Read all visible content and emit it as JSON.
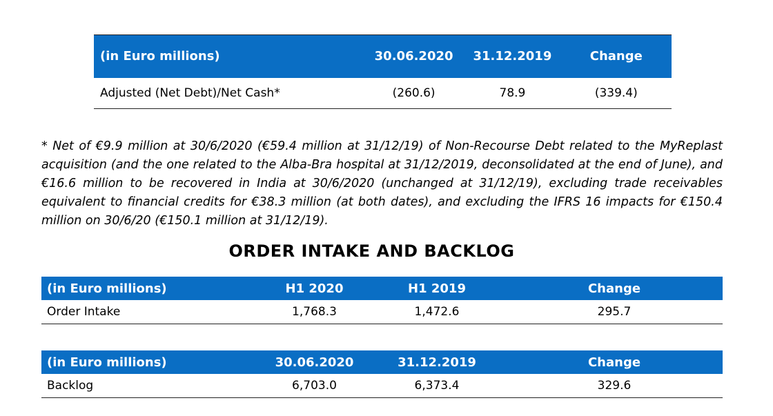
{
  "net_debt_table": {
    "headers": [
      "(in Euro millions)",
      "30.06.2020",
      "31.12.2019",
      "Change"
    ],
    "rows": [
      [
        "Adjusted (Net Debt)/Net Cash*",
        "(260.6)",
        "78.9",
        "(339.4)"
      ]
    ]
  },
  "footnote": "* Net of €9.9 million at 30/6/2020 (€59.4 million at 31/12/19) of Non-Recourse Debt related to the MyReplast acquisition (and the one related to the Alba-Bra hospital at 31/12/2019, deconsolidated at the end of June), and €16.6 million to be recovered in India at 30/6/2020 (unchanged at 31/12/19), excluding trade receivables equivalent to financial credits for €38.3 million (at both dates), and excluding the IFRS 16 impacts for €150.4 million on 30/6/20 (€150.1 million at 31/12/19).",
  "section_title": "ORDER INTAKE AND BACKLOG",
  "order_intake_table": {
    "headers": [
      "(in Euro millions)",
      "H1 2020",
      "H1 2019",
      "Change"
    ],
    "rows": [
      [
        "Order Intake",
        "1,768.3",
        "1,472.6",
        "295.7"
      ]
    ]
  },
  "backlog_table": {
    "headers": [
      "(in Euro millions)",
      "30.06.2020",
      "31.12.2019",
      "Change"
    ],
    "rows": [
      [
        "Backlog",
        "6,703.0",
        "6,373.4",
        "329.6"
      ]
    ]
  },
  "colors": {
    "header_bg": "#0a6ec4",
    "header_text": "#ffffff"
  }
}
